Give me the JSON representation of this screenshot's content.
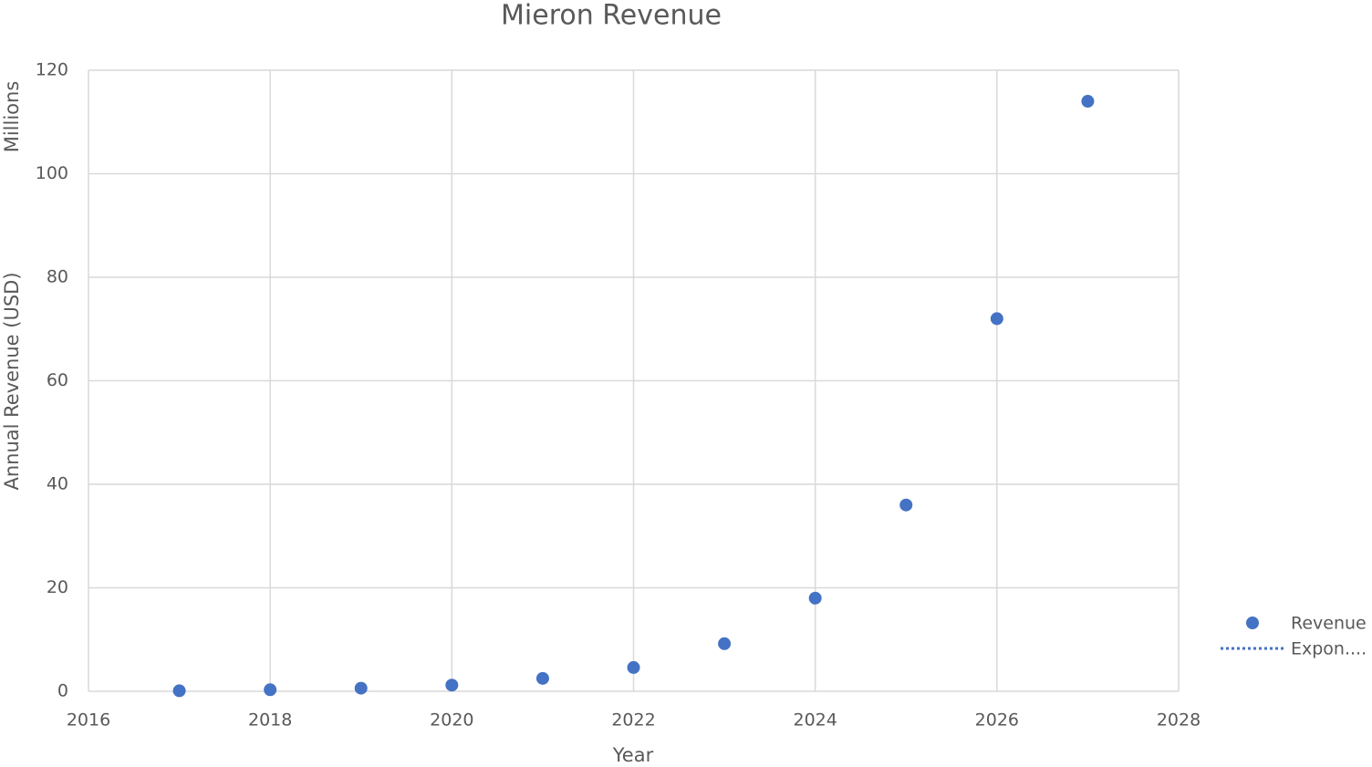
{
  "chart_data": {
    "type": "scatter",
    "title": "Mieron Revenue",
    "x_label": "Year",
    "y_label": "Annual Revenue (USD)",
    "y_unit_label": "Millions",
    "x": [
      2017,
      2018,
      2019,
      2020,
      2021,
      2022,
      2023,
      2024,
      2025,
      2026,
      2027
    ],
    "series": [
      {
        "name": "Revenue",
        "color": "#4472c4",
        "values": [
          0.1,
          0.3,
          0.6,
          1.2,
          2.5,
          4.6,
          9.2,
          18,
          36,
          72,
          114
        ]
      }
    ],
    "trendline": {
      "name": "Expon....",
      "color": "#4472c4",
      "style": "dotted"
    },
    "xlim": [
      2016,
      2028
    ],
    "xticks": [
      2016,
      2018,
      2020,
      2022,
      2024,
      2026,
      2028
    ],
    "ylim": [
      0,
      120
    ],
    "yticks": [
      0,
      20,
      40,
      60,
      80,
      100,
      120
    ],
    "grid": true,
    "legend": "right"
  }
}
